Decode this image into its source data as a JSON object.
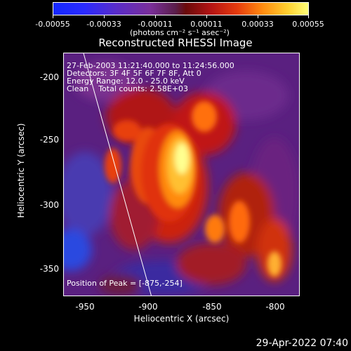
{
  "colorbar": {
    "tick_labels": [
      "-0.00055",
      "-0.00033",
      "-0.00011",
      "0.00011",
      "0.00033",
      "0.00055"
    ],
    "units_label": "(photons cm⁻² s⁻¹ asec⁻²)"
  },
  "title": "Reconstructed RHESSI Image",
  "annotations": {
    "line1": "27-Feb-2003 11:21:40.000 to 11:24:56.000",
    "line2": "Detectors: 3F 4F 5F 6F 7F 8F, Att 0",
    "line3": "Energy Range: 12.0 - 25.0 keV",
    "line4": "Clean    Total counts: 2.58E+03",
    "peak": "Position of Peak = [-875,-254]"
  },
  "axes": {
    "x_label": "Heliocentric X (arcsec)",
    "y_label": "Heliocentric Y (arcsec)",
    "x_ticks": [
      "-950",
      "-900",
      "-850",
      "-800"
    ],
    "y_ticks": [
      "-200",
      "-250",
      "-300",
      "-350"
    ]
  },
  "timestamp": "29-Apr-2022 07:40"
}
